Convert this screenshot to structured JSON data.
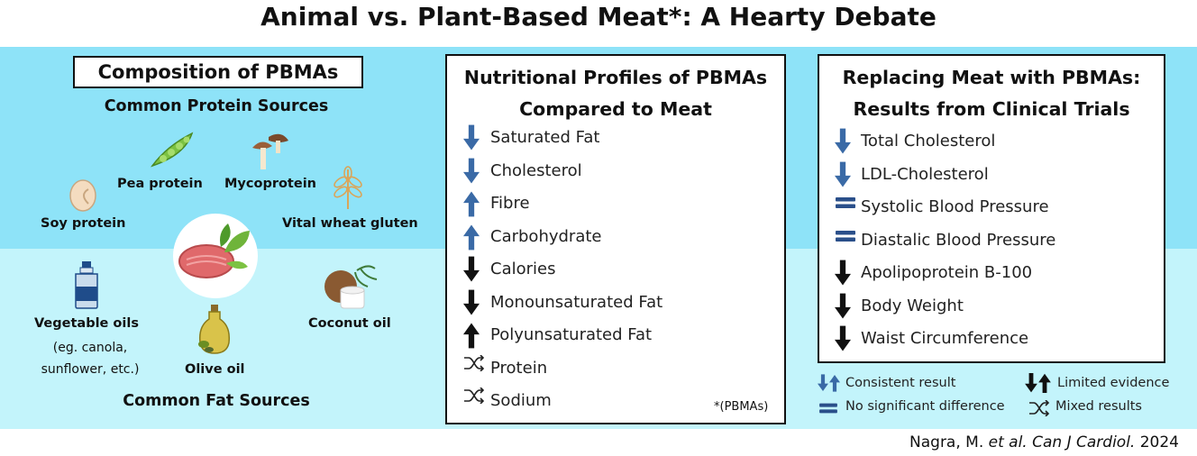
{
  "title": "Animal vs. Plant-Based Meat*: A Hearty Debate",
  "composition": {
    "title": "Composition of PBMAs",
    "protein_heading": "Common Protein Sources",
    "fat_heading": "Common Fat Sources",
    "proteins": [
      "Soy protein",
      "Pea protein",
      "Mycoprotein",
      "Vital wheat gluten"
    ],
    "fats": {
      "vegetable_oils": "Vegetable oils",
      "vegetable_oils_note_1": "(eg. canola,",
      "vegetable_oils_note_2": "sunflower, etc.)",
      "olive_oil": "Olive oil",
      "coconut_oil": "Coconut oil"
    }
  },
  "nutrition": {
    "title_line1": "Nutritional Profiles of PBMAs",
    "title_line2": "Compared to Meat",
    "rows": [
      {
        "label": "Saturated Fat",
        "symbol": "down-blue"
      },
      {
        "label": "Cholesterol",
        "symbol": "down-blue"
      },
      {
        "label": "Fibre",
        "symbol": "up-blue"
      },
      {
        "label": "Carbohydrate",
        "symbol": "up-blue"
      },
      {
        "label": "Calories",
        "symbol": "down-black"
      },
      {
        "label": "Monounsaturated Fat",
        "symbol": "down-black"
      },
      {
        "label": "Polyunsaturated Fat",
        "symbol": "up-black"
      },
      {
        "label": "Protein",
        "symbol": "mixed"
      },
      {
        "label": "Sodium",
        "symbol": "mixed"
      }
    ],
    "footnote": "*(PBMAs)"
  },
  "trials": {
    "title_line1": "Replacing Meat with PBMAs:",
    "title_line2": "Results from Clinical Trials",
    "rows": [
      {
        "label": "Total Cholesterol",
        "symbol": "down-blue"
      },
      {
        "label": "LDL-Cholesterol",
        "symbol": "down-blue"
      },
      {
        "label": "Systolic Blood Pressure",
        "symbol": "equal"
      },
      {
        "label": "Diastalic Blood Pressure",
        "symbol": "equal"
      },
      {
        "label": "Apolipoprotein B-100",
        "symbol": "down-black"
      },
      {
        "label": "Body Weight",
        "symbol": "down-black"
      },
      {
        "label": "Waist Circumference",
        "symbol": "down-black"
      }
    ]
  },
  "legend": {
    "consistent": "Consistent result",
    "limited": "Limited evidence",
    "no_diff": "No significant difference",
    "mixed": "Mixed results"
  },
  "citation": {
    "authors": "Nagra, M.",
    "etal": "et al. Can J Cardiol.",
    "year": "2024"
  },
  "colors": {
    "band_top": "#8ee3f8",
    "band_bottom": "#c3f4fb",
    "blue_arrow": "#3a6aa6",
    "black_arrow": "#111111"
  }
}
